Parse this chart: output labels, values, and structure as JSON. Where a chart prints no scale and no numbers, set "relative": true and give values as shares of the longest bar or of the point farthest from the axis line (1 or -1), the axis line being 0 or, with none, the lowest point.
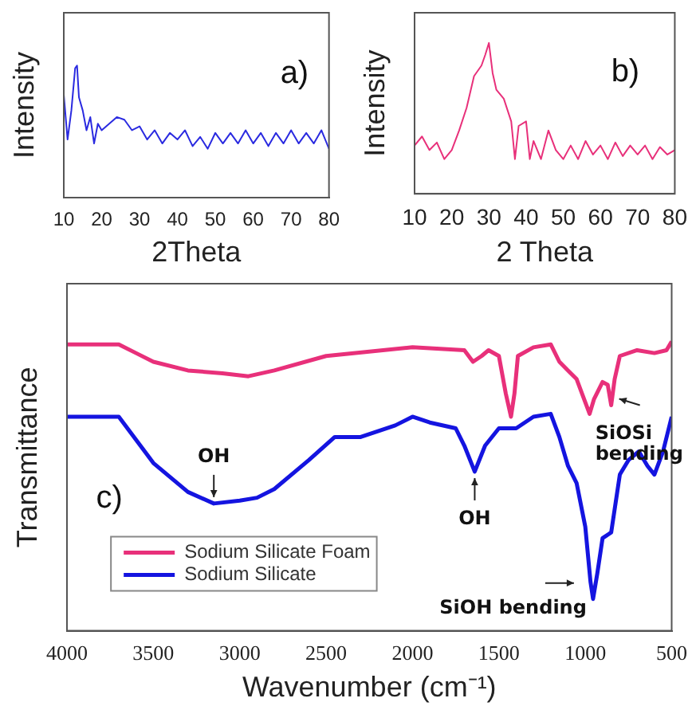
{
  "chart_data": [
    {
      "type": "line",
      "relative": true,
      "xlabel": "2Theta",
      "ylabel": "Intensity",
      "annotations": [
        "a)"
      ],
      "color": "#2a2ae0",
      "marker": "none",
      "xlim": [
        10,
        80
      ],
      "xticks": [
        10,
        20,
        30,
        40,
        50,
        60,
        70,
        80
      ],
      "x": [
        10,
        11,
        12,
        13,
        13.5,
        14,
        15,
        16,
        17,
        18,
        19,
        20,
        22,
        24,
        26,
        28,
        30,
        32,
        34,
        36,
        38,
        40,
        42,
        44,
        46,
        48,
        50,
        52,
        54,
        56,
        58,
        60,
        62,
        64,
        66,
        68,
        70,
        72,
        74,
        76,
        78,
        80
      ],
      "values": [
        0.78,
        0.44,
        0.66,
        0.98,
        1.0,
        0.76,
        0.66,
        0.51,
        0.61,
        0.41,
        0.56,
        0.51,
        0.56,
        0.61,
        0.59,
        0.51,
        0.54,
        0.44,
        0.51,
        0.41,
        0.49,
        0.44,
        0.51,
        0.39,
        0.46,
        0.37,
        0.49,
        0.41,
        0.49,
        0.41,
        0.51,
        0.41,
        0.49,
        0.39,
        0.49,
        0.41,
        0.51,
        0.41,
        0.49,
        0.41,
        0.51,
        0.37
      ]
    },
    {
      "type": "line",
      "relative": true,
      "xlabel": "2 Theta",
      "ylabel": "Intensity",
      "annotations": [
        "b)"
      ],
      "color": "#e8307a",
      "marker": "none",
      "xlim": [
        10,
        80
      ],
      "xticks": [
        10,
        20,
        30,
        40,
        50,
        60,
        70,
        80
      ],
      "x": [
        10,
        12,
        14,
        16,
        18,
        20,
        22,
        24,
        26,
        28,
        29,
        30,
        31,
        32,
        34,
        36,
        37,
        38,
        40,
        41,
        42,
        44,
        46,
        48,
        50,
        52,
        54,
        56,
        58,
        60,
        62,
        64,
        66,
        68,
        70,
        72,
        74,
        76,
        78,
        80
      ],
      "values": [
        0.32,
        0.38,
        0.29,
        0.34,
        0.23,
        0.29,
        0.42,
        0.57,
        0.78,
        0.85,
        0.92,
        1.0,
        0.8,
        0.69,
        0.63,
        0.48,
        0.23,
        0.45,
        0.48,
        0.23,
        0.35,
        0.23,
        0.42,
        0.29,
        0.23,
        0.32,
        0.23,
        0.35,
        0.26,
        0.32,
        0.23,
        0.34,
        0.25,
        0.32,
        0.26,
        0.32,
        0.23,
        0.31,
        0.26,
        0.29
      ]
    },
    {
      "type": "line",
      "relative": true,
      "xlabel": "Wavenumber (cm⁻¹)",
      "ylabel": "Transmittance",
      "legend": "bottom left",
      "marker": "none",
      "xlim": [
        4000,
        500
      ],
      "xticks": [
        4000,
        3500,
        3000,
        2500,
        2000,
        1500,
        1000,
        500
      ],
      "annotations": [
        "c)",
        {
          "text": "OH",
          "x": 3150,
          "y": 0.44
        },
        {
          "text": "OH",
          "x": 1640,
          "y": 0.55
        },
        {
          "text": "SiOH bending",
          "x": 955,
          "y": 0.11
        },
        {
          "text": "SiOSi bending",
          "x": 850,
          "y": 0.78
        }
      ],
      "series": [
        {
          "name": "Sodium Silicate Foam",
          "color": "#e8307a",
          "x": [
            4000,
            3700,
            3600,
            3500,
            3300,
            3100,
            2950,
            2800,
            2500,
            2000,
            1700,
            1650,
            1600,
            1560,
            1500,
            1460,
            1430,
            1410,
            1390,
            1300,
            1200,
            1150,
            1100,
            1050,
            1000,
            975,
            950,
            900,
            870,
            850,
            830,
            800,
            700,
            600,
            530,
            500
          ],
          "values": [
            0.99,
            0.99,
            0.96,
            0.93,
            0.9,
            0.89,
            0.88,
            0.9,
            0.95,
            0.98,
            0.97,
            0.93,
            0.95,
            0.97,
            0.95,
            0.82,
            0.74,
            0.82,
            0.95,
            0.98,
            0.99,
            0.93,
            0.9,
            0.87,
            0.79,
            0.75,
            0.8,
            0.86,
            0.85,
            0.78,
            0.87,
            0.95,
            0.97,
            0.96,
            0.97,
            1.0
          ]
        },
        {
          "name": "Sodium Silicate",
          "color": "#1414e0",
          "x": [
            4000,
            3700,
            3600,
            3500,
            3300,
            3150,
            3000,
            2900,
            2800,
            2600,
            2450,
            2300,
            2100,
            2000,
            1900,
            1750,
            1700,
            1640,
            1580,
            1500,
            1400,
            1300,
            1200,
            1150,
            1100,
            1050,
            1000,
            970,
            955,
            930,
            900,
            850,
            800,
            750,
            690,
            640,
            600,
            550,
            500
          ],
          "values": [
            0.74,
            0.74,
            0.66,
            0.58,
            0.48,
            0.44,
            0.45,
            0.46,
            0.49,
            0.59,
            0.67,
            0.67,
            0.71,
            0.74,
            0.72,
            0.7,
            0.64,
            0.55,
            0.64,
            0.7,
            0.7,
            0.74,
            0.75,
            0.67,
            0.57,
            0.51,
            0.36,
            0.17,
            0.11,
            0.2,
            0.32,
            0.34,
            0.54,
            0.59,
            0.62,
            0.57,
            0.54,
            0.62,
            0.74
          ]
        }
      ]
    }
  ]
}
